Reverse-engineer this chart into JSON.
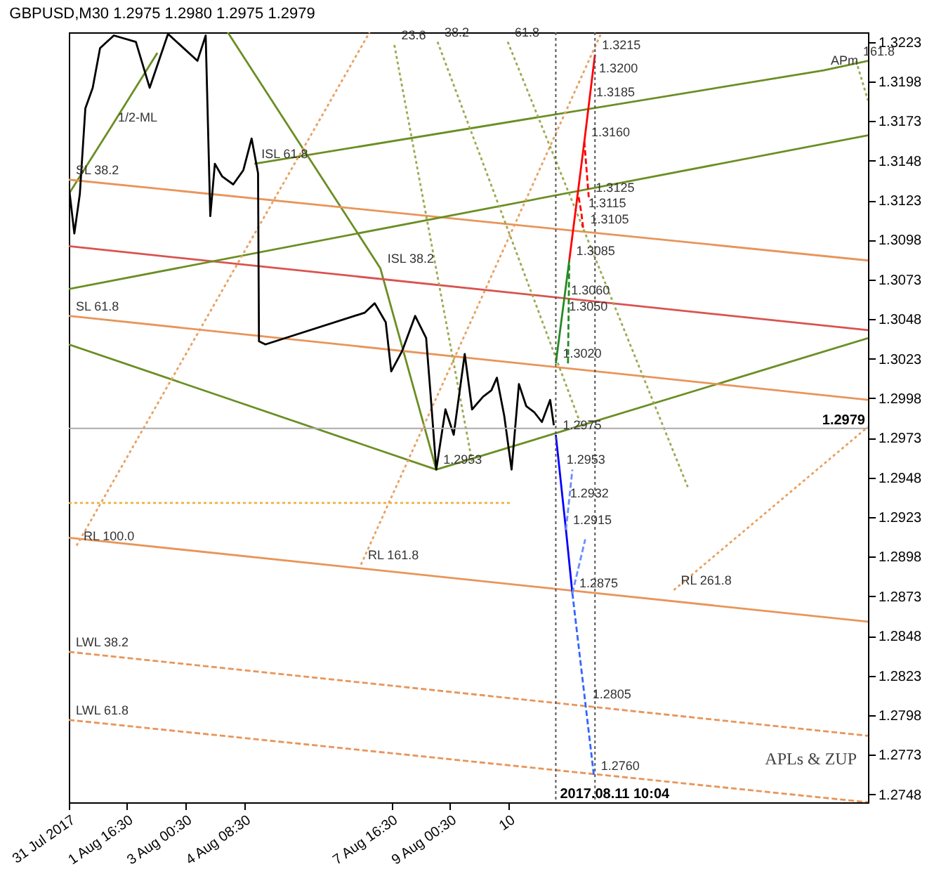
{
  "chart_data": {
    "type": "line",
    "title": "GBPUSD,M30 1.2975 1.2980 1.2975 1.2979",
    "xlim": [
      "2017-07-31T09:00",
      "2017-08-18T12:00"
    ],
    "ylim": [
      1.2743,
      1.3229
    ],
    "xticks": [
      {
        "value": "2017-07-31T09:00",
        "label": "31 Jul 2017"
      },
      {
        "value": "2017-08-01T16:30",
        "label": "1 Aug 16:30"
      },
      {
        "value": "2017-08-03T00:30",
        "label": "3 Aug 00:30"
      },
      {
        "value": "2017-08-04T08:30",
        "label": "4 Aug 08:30"
      },
      {
        "value": "2017-08-07T16:30",
        "label": "7 Aug 16:30"
      },
      {
        "value": "2017-08-09T00:30",
        "label": "9 Aug 00:30"
      },
      {
        "value": "2017-08-10T08:30",
        "label": "10"
      }
    ],
    "yticks": [
      1.2748,
      1.2773,
      1.2798,
      1.2823,
      1.2848,
      1.2873,
      1.2898,
      1.2923,
      1.2948,
      1.2973,
      1.2998,
      1.3023,
      1.3048,
      1.3073,
      1.3098,
      1.3123,
      1.3148,
      1.3173,
      1.3198,
      1.3223
    ],
    "grid": false,
    "series": [
      {
        "color": "#6b8e23",
        "line_style": "solid",
        "x": [
          "2017-07-31T09:00",
          "2017-08-08T17:00"
        ],
        "values": [
          1.3032,
          1.2953
        ]
      },
      {
        "color": "#6b8e23",
        "line_style": "solid",
        "x": [
          "2017-08-08T17:00",
          "2017-08-18T12:00"
        ],
        "values": [
          1.2953,
          1.3036
        ]
      },
      {
        "color": "#6b8e23",
        "line_style": "solid",
        "x": [
          "2017-08-03T23:30",
          "2017-08-07T10:36",
          "2017-08-08T17:00"
        ],
        "values": [
          1.3229,
          1.308,
          1.2953
        ]
      },
      {
        "color": "#6b8e23",
        "line_style": "solid",
        "x": [
          "2017-07-31T09:00",
          "2017-08-01T07:54",
          "2017-08-02T09:12"
        ],
        "values": [
          1.3127,
          1.3169,
          1.3216
        ]
      },
      {
        "color": "#d9534f",
        "line_style": "solid",
        "x": [
          "2017-07-31T09:00",
          "2017-08-18T12:00"
        ],
        "values": [
          1.3094,
          1.3041
        ]
      },
      {
        "color": "#e8955a",
        "line_style": "solid",
        "x": [
          "2017-07-31T09:00",
          "2017-08-18T12:00"
        ],
        "values": [
          1.3136,
          1.3085
        ]
      },
      {
        "color": "#e8955a",
        "line_style": "solid",
        "x": [
          "2017-07-31T09:00",
          "2017-08-18T12:00"
        ],
        "values": [
          1.305,
          1.2997
        ]
      },
      {
        "color": "#e8955a",
        "line_style": "solid",
        "x": [
          "2017-07-31T09:00",
          "2017-08-18T12:00"
        ],
        "values": [
          1.291,
          1.2857
        ]
      },
      {
        "color": "#6b8e23",
        "line_style": "solid",
        "x": [
          "2017-07-31T09:00",
          "2017-08-18T12:00"
        ],
        "values": [
          1.3067,
          1.3164
        ]
      },
      {
        "color": "#6b8e23",
        "line_style": "solid",
        "x": [
          "2017-08-04T14:00",
          "2017-08-17T11:54",
          "2017-08-18T12:00"
        ],
        "values": [
          1.3146,
          1.3205,
          1.3211
        ]
      },
      {
        "color": "#e8955a",
        "line_style": "dashed",
        "x": [
          "2017-07-31T09:00",
          "2017-08-18T12:00"
        ],
        "values": [
          1.2838,
          1.2785
        ]
      },
      {
        "color": "#e8955a",
        "line_style": "dashed",
        "x": [
          "2017-07-31T09:00",
          "2017-08-18T12:00"
        ],
        "values": [
          1.2795,
          1.2743
        ]
      },
      {
        "color": "#e8a060",
        "line_style": "dotted",
        "x": [
          "2017-07-31T13:12",
          "2017-08-07T04:42"
        ],
        "values": [
          1.2905,
          1.3229
        ]
      },
      {
        "color": "#e8a060",
        "line_style": "dotted",
        "x": [
          "2017-08-07T00:00",
          "2017-08-12T11:00"
        ],
        "values": [
          1.2893,
          1.3229
        ]
      },
      {
        "color": "#e8a060",
        "line_style": "dotted",
        "x": [
          "2017-08-14T02:18",
          "2017-08-18T12:00"
        ],
        "values": [
          1.2877,
          1.298
        ]
      },
      {
        "color": "#9aaa50",
        "line_style": "dotted",
        "x": [
          "2017-08-07T18:12",
          "2017-08-09T12:30"
        ],
        "values": [
          1.3221,
          1.2958
        ]
      },
      {
        "color": "#9aaa50",
        "line_style": "dotted",
        "x": [
          "2017-08-08T17:42",
          "2017-08-11T23:12"
        ],
        "values": [
          1.3223,
          1.2983
        ]
      },
      {
        "color": "#9aaa50",
        "line_style": "dotted",
        "x": [
          "2017-08-10T07:54",
          "2017-08-14T09:54"
        ],
        "values": [
          1.3223,
          1.2942
        ]
      },
      {
        "color": "#9aaa50",
        "line_style": "dotted",
        "x": [
          "2017-08-18T05:30",
          "2017-08-18T12:00"
        ],
        "values": [
          1.3211,
          1.3186
        ]
      },
      {
        "color": "#f0b040",
        "line_style": "dotted",
        "x": [
          "2017-07-31T09:00",
          "2017-08-10T10:00"
        ],
        "values": [
          1.2932,
          1.2932
        ]
      },
      {
        "color": "#000000",
        "line_style": "solid",
        "x": [
          "2017-07-31T09:00",
          "2017-07-31T12:00",
          "2017-07-31T15:00",
          "2017-07-31T18:00",
          "2017-07-31T22:00",
          "2017-08-01T02:00",
          "2017-08-01T09:30",
          "2017-08-01T21:30",
          "2017-08-02T05:00",
          "2017-08-02T15:00",
          "2017-08-03T07:00",
          "2017-08-03T11:30",
          "2017-08-03T14:00",
          "2017-08-03T16:30",
          "2017-08-03T20:30",
          "2017-08-04T02:30",
          "2017-08-04T08:00",
          "2017-08-04T12:30",
          "2017-08-04T16:00",
          "2017-08-04T16:30",
          "2017-08-04T20:00",
          "2017-08-07T02:00",
          "2017-08-07T07:30",
          "2017-08-07T13:30",
          "2017-08-07T16:30",
          "2017-08-07T22:30",
          "2017-08-08T05:30",
          "2017-08-08T11:30",
          "2017-08-08T14:00",
          "2017-08-08T17:00",
          "2017-08-08T22:00",
          "2017-08-09T02:30",
          "2017-08-09T08:30",
          "2017-08-09T12:30",
          "2017-08-09T18:30",
          "2017-08-09T23:00",
          "2017-08-10T02:00",
          "2017-08-10T06:00",
          "2017-08-10T10:00",
          "2017-08-10T14:00",
          "2017-08-10T18:00",
          "2017-08-10T22:30",
          "2017-08-11T02:30",
          "2017-08-11T07:00",
          "2017-08-11T09:00"
        ],
        "values": [
          1.3132,
          1.3102,
          1.3127,
          1.3181,
          1.3194,
          1.3219,
          1.3227,
          1.3223,
          1.3194,
          1.3228,
          1.3211,
          1.3227,
          1.3113,
          1.3146,
          1.3138,
          1.3133,
          1.3142,
          1.3162,
          1.314,
          1.3034,
          1.3032,
          1.3052,
          1.3058,
          1.3046,
          1.3015,
          1.3028,
          1.305,
          1.3036,
          1.2999,
          1.2953,
          1.2991,
          1.2975,
          1.3026,
          1.2991,
          1.2999,
          1.3003,
          1.3011,
          1.2987,
          1.2953,
          1.3007,
          1.2993,
          1.2989,
          1.2983,
          1.2997,
          1.2981
        ]
      },
      {
        "color": "#228b22",
        "line_style": "solid",
        "x": [
          "2017-08-11T10:04",
          "2017-08-11T13:27",
          "2017-08-11T14:35",
          "2017-08-11T17:24"
        ],
        "values": [
          1.302,
          1.305,
          1.306,
          1.3085
        ]
      },
      {
        "color": "#228b22",
        "line_style": "dashed",
        "x": [
          "2017-08-11T17:24",
          "2017-08-11T16:42"
        ],
        "values": [
          1.3085,
          1.302
        ]
      },
      {
        "color": "#ff0000",
        "line_style": "solid",
        "x": [
          "2017-08-11T17:24",
          "2017-08-12T01:36",
          "2017-08-12T04:14",
          "2017-08-12T05:49",
          "2017-08-12T07:24"
        ],
        "values": [
          1.3085,
          1.316,
          1.3185,
          1.32,
          1.3215
        ]
      },
      {
        "color": "#ff0000",
        "line_style": "dashed",
        "x": [
          "2017-08-12T01:36",
          "2017-08-12T04:00"
        ],
        "values": [
          1.316,
          1.3125
        ]
      },
      {
        "color": "#ff0000",
        "line_style": "dashed",
        "x": [
          "2017-08-11T22:30",
          "2017-08-12T00:00",
          "2017-08-12T01:00"
        ],
        "values": [
          1.3125,
          1.3115,
          1.3105
        ]
      },
      {
        "color": "#0000ff",
        "line_style": "solid",
        "x": [
          "2017-08-11T10:04",
          "2017-08-11T12:06",
          "2017-08-11T14:02",
          "2017-08-11T15:36",
          "2017-08-11T19:06"
        ],
        "values": [
          1.2975,
          1.2953,
          1.2932,
          1.2915,
          1.2875
        ]
      },
      {
        "color": "#3366ff",
        "line_style": "dashed",
        "x": [
          "2017-08-11T19:06",
          "2017-08-12T02:13",
          "2017-08-12T06:48"
        ],
        "values": [
          1.2875,
          1.2805,
          1.276
        ]
      },
      {
        "color": "#6a8cff",
        "line_style": "dashed",
        "x": [
          "2017-08-11T15:36",
          "2017-08-11T19:06"
        ],
        "values": [
          1.2915,
          1.2953
        ]
      },
      {
        "color": "#6a8cff",
        "line_style": "dashed",
        "x": [
          "2017-08-11T19:06",
          "2017-08-12T02:06"
        ],
        "values": [
          1.2875,
          1.2909
        ]
      }
    ],
    "ref_lines": [
      {
        "axis": "y",
        "value": 1.2979,
        "label": "1.2979",
        "color": "#aaaaaa",
        "line_style": "solid"
      },
      {
        "axis": "x",
        "value": "2017-08-11T10:04",
        "label": "2017.08.11 10:04",
        "color": "#555555",
        "line_style": "dotted"
      },
      {
        "axis": "x",
        "value": "2017-08-12T07:24",
        "color": "#555555",
        "line_style": "dotted"
      }
    ],
    "annotations": [
      {
        "text": "1.3215",
        "x": "2017-08-12T07:24",
        "y": 1.3215
      },
      {
        "text": "1.3200",
        "x": "2017-08-12T05:49",
        "y": 1.32
      },
      {
        "text": "1.3185",
        "x": "2017-08-12T04:14",
        "y": 1.3185
      },
      {
        "text": "1.3160",
        "x": "2017-08-12T01:36",
        "y": 1.316
      },
      {
        "text": "1.3125",
        "x": "2017-08-12T04:00",
        "y": 1.3125
      },
      {
        "text": "1.3115",
        "x": "2017-08-12T00:00",
        "y": 1.3115
      },
      {
        "text": "1.3105",
        "x": "2017-08-12T01:00",
        "y": 1.3105
      },
      {
        "text": "1.3085",
        "x": "2017-08-11T17:24",
        "y": 1.3085
      },
      {
        "text": "1.3060",
        "x": "2017-08-11T14:35",
        "y": 1.306
      },
      {
        "text": "1.3050",
        "x": "2017-08-11T13:27",
        "y": 1.305
      },
      {
        "text": "1.3020",
        "x": "2017-08-11T10:04",
        "y": 1.302
      },
      {
        "text": "1.2975",
        "x": "2017-08-11T10:04",
        "y": 1.2975
      },
      {
        "text": "1.2953",
        "x": "2017-08-11T12:06",
        "y": 1.2953
      },
      {
        "text": "1.2932",
        "x": "2017-08-11T14:02",
        "y": 1.2932
      },
      {
        "text": "1.2915",
        "x": "2017-08-11T15:36",
        "y": 1.2915
      },
      {
        "text": "1.2875",
        "x": "2017-08-11T19:06",
        "y": 1.2875
      },
      {
        "text": "1.2805",
        "x": "2017-08-12T02:13",
        "y": 1.2805
      },
      {
        "text": "1.2760",
        "x": "2017-08-12T06:48",
        "y": 1.276
      },
      {
        "text": "1.2953",
        "x": "2017-08-08T17:00",
        "y": 1.2953
      },
      {
        "text": "APm",
        "x": "2017-08-17T11:54",
        "y": 1.3205
      },
      {
        "text": "1/2-ML",
        "x": "2017-08-01T07:54",
        "y": 1.3169
      },
      {
        "text": "SL 38.2",
        "x": "2017-07-31T09:00",
        "y": 1.3136
      },
      {
        "text": "SL 61.8",
        "x": "2017-07-31T09:00",
        "y": 1.305
      },
      {
        "text": "ISL 61.8",
        "x": "2017-08-04T14:00",
        "y": 1.3146
      },
      {
        "text": "ISL 38.2",
        "x": "2017-08-07T10:36",
        "y": 1.308
      },
      {
        "text": "RL 100.0",
        "x": "2017-07-31T13:12",
        "y": 1.2905
      },
      {
        "text": "RL 161.8",
        "x": "2017-08-07T00:00",
        "y": 1.2893
      },
      {
        "text": "RL 261.8",
        "x": "2017-08-14T02:18",
        "y": 1.2877
      },
      {
        "text": "LWL 38.2",
        "x": "2017-07-31T09:00",
        "y": 1.2838
      },
      {
        "text": "LWL 61.8",
        "x": "2017-07-31T09:00",
        "y": 1.2795
      },
      {
        "text": "23.6",
        "x": "2017-08-07T18:12",
        "y": 1.3221
      },
      {
        "text": "38.2",
        "x": "2017-08-08T17:42",
        "y": 1.3223
      },
      {
        "text": "61.8",
        "x": "2017-08-10T07:54",
        "y": 1.3223
      },
      {
        "text": "161.8",
        "x": "2017-08-18T05:30",
        "y": 1.3211
      },
      "APLs & ZUP"
    ]
  }
}
